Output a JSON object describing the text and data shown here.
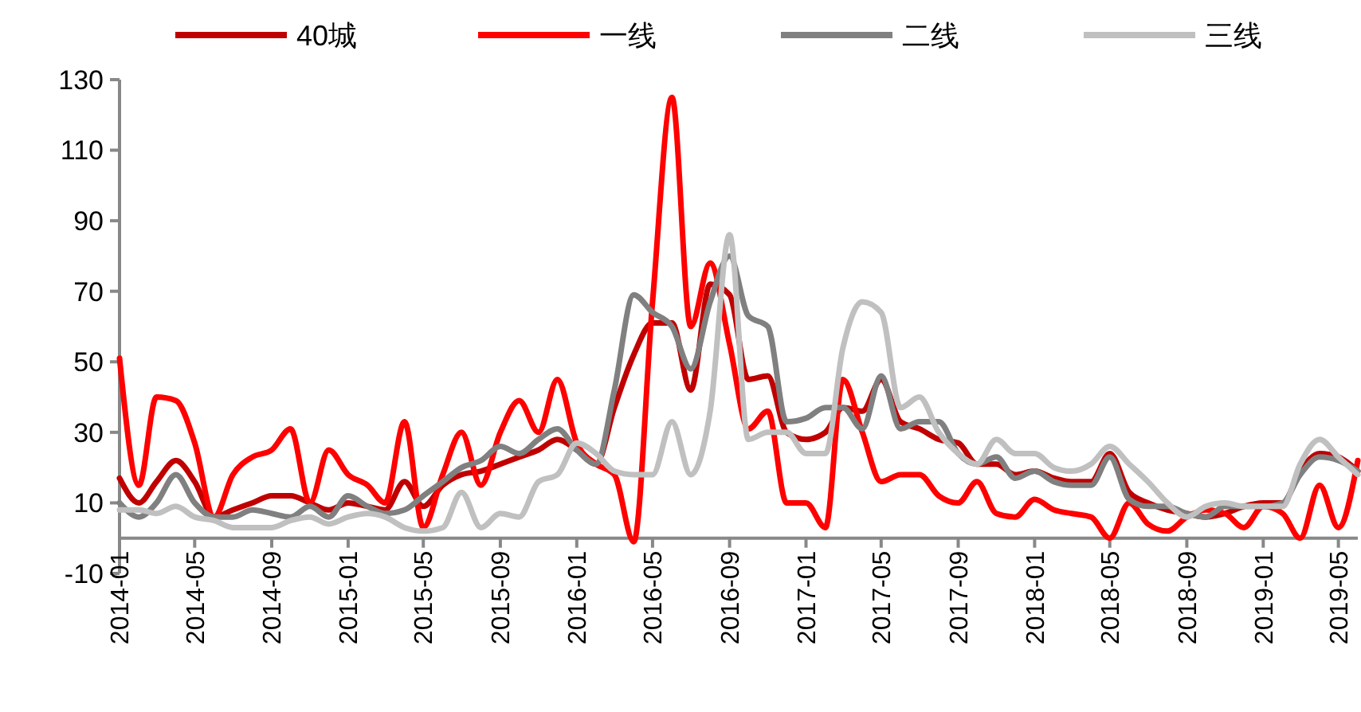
{
  "chart_data": {
    "type": "line",
    "x": [
      "2014-01",
      "2014-02",
      "2014-03",
      "2014-04",
      "2014-05",
      "2014-06",
      "2014-07",
      "2014-08",
      "2014-09",
      "2014-10",
      "2014-11",
      "2014-12",
      "2015-01",
      "2015-02",
      "2015-03",
      "2015-04",
      "2015-05",
      "2015-06",
      "2015-07",
      "2015-08",
      "2015-09",
      "2015-10",
      "2015-11",
      "2015-12",
      "2016-01",
      "2016-02",
      "2016-03",
      "2016-04",
      "2016-05",
      "2016-06",
      "2016-07",
      "2016-08",
      "2016-09",
      "2016-10",
      "2016-11",
      "2016-12",
      "2017-01",
      "2017-02",
      "2017-03",
      "2017-04",
      "2017-05",
      "2017-06",
      "2017-07",
      "2017-08",
      "2017-09",
      "2017-10",
      "2017-11",
      "2017-12",
      "2018-01",
      "2018-02",
      "2018-03",
      "2018-04",
      "2018-05",
      "2018-06",
      "2018-07",
      "2018-08",
      "2018-09",
      "2018-10",
      "2018-11",
      "2018-12",
      "2019-01",
      "2019-02",
      "2019-03",
      "2019-04",
      "2019-05",
      "2019-06"
    ],
    "series": [
      {
        "name": "40城",
        "color": "#c00000",
        "values": [
          17,
          10,
          16,
          22,
          16,
          6,
          8,
          10,
          12,
          12,
          10,
          8,
          10,
          9,
          8,
          16,
          9,
          15,
          18,
          19,
          21,
          23,
          25,
          28,
          25,
          21,
          37,
          52,
          61,
          61,
          42,
          72,
          69,
          45,
          46,
          30,
          28,
          30,
          37,
          36,
          45,
          33,
          31,
          28,
          27,
          21,
          21,
          18,
          19,
          17,
          16,
          16,
          24,
          13,
          10,
          8,
          7,
          6,
          7,
          9,
          10,
          10,
          19,
          24,
          23,
          19
        ]
      },
      {
        "name": "一线",
        "color": "#ff0000",
        "values": [
          51,
          15,
          40,
          39,
          27,
          6,
          18,
          23,
          25,
          31,
          10,
          25,
          18,
          15,
          10,
          33,
          3,
          18,
          30,
          15,
          30,
          39,
          30,
          45,
          27,
          21,
          18,
          -1,
          67,
          125,
          60,
          78,
          55,
          31,
          36,
          10,
          10,
          3,
          45,
          30,
          16,
          18,
          18,
          12,
          10,
          16,
          7,
          6,
          11,
          8,
          7,
          6,
          0,
          10,
          4,
          2,
          6,
          8,
          7,
          3,
          9,
          7,
          0,
          15,
          3,
          22
        ]
      },
      {
        "name": "二线",
        "color": "#808080",
        "values": [
          10,
          6,
          10,
          18,
          10,
          6,
          6,
          8,
          7,
          6,
          9,
          6,
          12,
          9,
          7,
          8,
          12,
          16,
          20,
          22,
          26,
          24,
          28,
          31,
          25,
          21,
          42,
          69,
          64,
          60,
          48,
          67,
          80,
          63,
          60,
          33,
          34,
          37,
          37,
          31,
          46,
          31,
          33,
          33,
          24,
          21,
          23,
          17,
          19,
          16,
          15,
          15,
          23,
          11,
          9,
          9,
          7,
          6,
          9,
          9,
          9,
          10,
          18,
          23,
          22,
          19
        ]
      },
      {
        "name": "三线",
        "color": "#c0c0c0",
        "values": [
          8,
          8,
          7,
          9,
          6,
          5,
          3,
          3,
          3,
          5,
          6,
          4,
          6,
          7,
          6,
          3,
          2,
          3,
          13,
          3,
          7,
          6,
          16,
          18,
          27,
          24,
          19,
          18,
          18,
          33,
          18,
          36,
          86,
          28,
          30,
          30,
          24,
          24,
          54,
          67,
          64,
          37,
          40,
          30,
          24,
          21,
          28,
          24,
          24,
          20,
          19,
          21,
          26,
          21,
          16,
          10,
          6,
          9,
          10,
          9,
          9,
          9,
          21,
          28,
          23,
          18
        ]
      }
    ],
    "xlim": [
      "2014-01",
      "2019-06"
    ],
    "xticks": [
      "2014-01",
      "2014-05",
      "2014-09",
      "2015-01",
      "2015-05",
      "2015-09",
      "2016-01",
      "2016-05",
      "2016-09",
      "2017-01",
      "2017-05",
      "2017-09",
      "2018-01",
      "2018-05",
      "2018-09",
      "2019-01",
      "2019-05"
    ],
    "ylim": [
      -10,
      130
    ],
    "yticks": [
      -10,
      10,
      30,
      50,
      70,
      90,
      110,
      130
    ],
    "legend": "top",
    "grid": false,
    "marker": "none",
    "line_style": "solid"
  }
}
